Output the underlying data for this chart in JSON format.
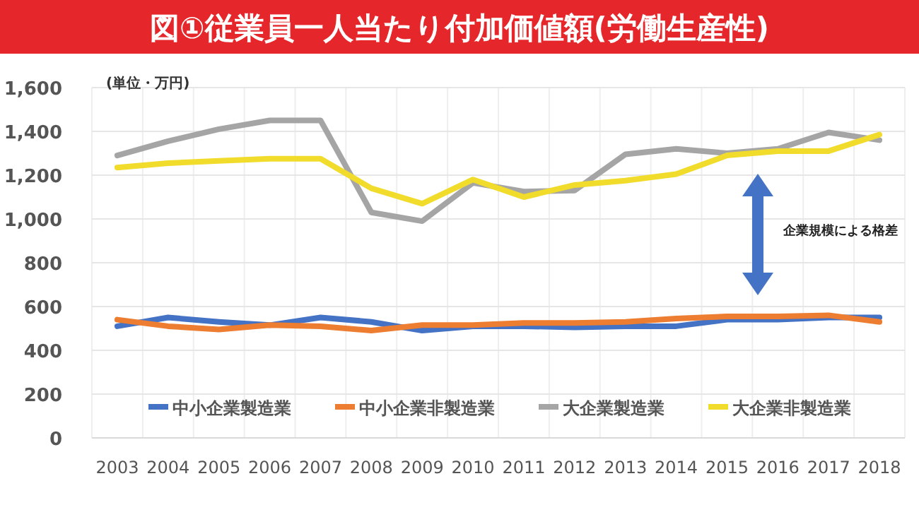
{
  "chart_data": {
    "type": "line",
    "title": "図①従業員一人当たり付加価値額(労働生産性)",
    "categories": [
      "2003",
      "2004",
      "2005",
      "2006",
      "2007",
      "2008",
      "2009",
      "2010",
      "2011",
      "2012",
      "2013",
      "2014",
      "2015",
      "2016",
      "2017",
      "2018"
    ],
    "ylim": [
      0,
      1600
    ],
    "yticks": [
      0,
      {
        "value": 200,
        "label": "200"
      },
      {
        "value": 400,
        "label": "400"
      },
      {
        "value": 600,
        "label": "600"
      },
      {
        "value": 800,
        "label": "800"
      },
      {
        "value": 1000,
        "label": "1,000"
      },
      {
        "value": 1200,
        "label": "1,200"
      },
      {
        "value": 1400,
        "label": "1,400"
      },
      {
        "value": 1600,
        "label": "1,600"
      }
    ],
    "grid": true,
    "legend": "bottom",
    "marker": "none",
    "line_style": "solid",
    "annotations": [
      "(単位・万円)",
      "企業規模による格差"
    ],
    "series": [
      {
        "name": "中小企業製造業",
        "color": "#4472c4",
        "values": [
          510,
          550,
          530,
          515,
          550,
          530,
          490,
          510,
          510,
          505,
          510,
          510,
          540,
          540,
          550,
          550
        ]
      },
      {
        "name": "中小企業非製造業",
        "color": "#ed7d31",
        "values": [
          540,
          510,
          495,
          515,
          510,
          490,
          515,
          515,
          525,
          525,
          530,
          545,
          555,
          555,
          560,
          530
        ]
      },
      {
        "name": "大企業製造業",
        "color": "#a5a5a5",
        "values": [
          1290,
          1355,
          1410,
          1450,
          1450,
          1030,
          990,
          1165,
          1125,
          1130,
          1295,
          1320,
          1300,
          1320,
          1395,
          1360
        ]
      },
      {
        "name": "大企業非製造業",
        "color": "#f2dc2b",
        "values": [
          1235,
          1255,
          1265,
          1275,
          1275,
          1140,
          1070,
          1180,
          1100,
          1155,
          1175,
          1205,
          1290,
          1310,
          1310,
          1385
        ]
      }
    ]
  }
}
